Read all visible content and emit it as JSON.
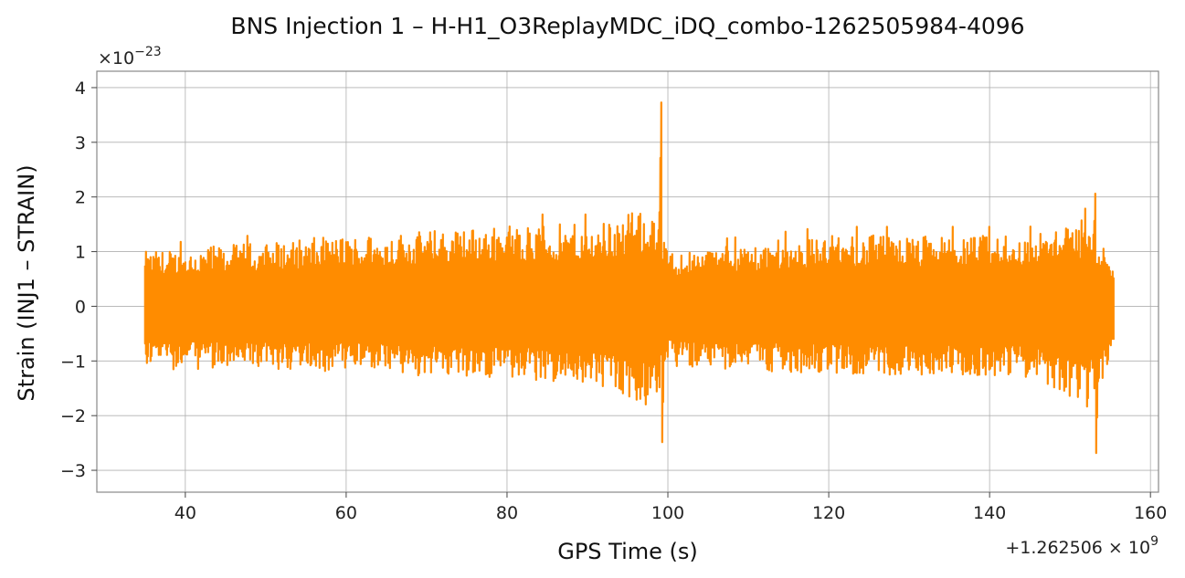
{
  "chart_data": {
    "type": "line",
    "title": "BNS Injection 1 – H-H1_O3ReplayMDC_iDQ_combo-1262505984-4096",
    "xlabel": "GPS Time (s)",
    "ylabel": "Strain (INJ1 – STRAIN)",
    "x_offset_label": "+1.262506 × 10",
    "x_offset_exp": "9",
    "y_scale_label": "×10",
    "y_scale_exp": "−23",
    "xlim": [
      29,
      161
    ],
    "ylim": [
      -3.4,
      4.3
    ],
    "x_ticks": [
      40,
      60,
      80,
      100,
      120,
      140,
      160
    ],
    "x_tick_labels": [
      "40",
      "60",
      "80",
      "100",
      "120",
      "140",
      "160"
    ],
    "y_ticks": [
      -3,
      -2,
      -1,
      0,
      1,
      2,
      3,
      4
    ],
    "y_tick_labels": [
      "−3",
      "−2",
      "−1",
      "0",
      "1",
      "2",
      "3",
      "4"
    ],
    "grid": true,
    "line_color": "#ff8c00",
    "series": [
      {
        "x_start": 35.0,
        "x_end": 155.4,
        "noise_amplitude": 0.85,
        "features": [
          {
            "type": "chirp_peak",
            "x": 99.2,
            "max": 3.95,
            "min": -3.05
          },
          {
            "type": "chirp_peak",
            "x": 153.2,
            "max": 2.38,
            "min": -2.92
          }
        ],
        "envelope": [
          {
            "x": 35,
            "max": 1.0,
            "min": -1.15
          },
          {
            "x": 60,
            "max": 1.3,
            "min": -1.2
          },
          {
            "x": 80,
            "max": 1.5,
            "min": -1.35
          },
          {
            "x": 90,
            "max": 1.5,
            "min": -1.4
          },
          {
            "x": 98,
            "max": 1.8,
            "min": -1.9
          },
          {
            "x": 100,
            "max": 1.0,
            "min": -1.1
          },
          {
            "x": 120,
            "max": 1.3,
            "min": -1.25
          },
          {
            "x": 145,
            "max": 1.3,
            "min": -1.3
          },
          {
            "x": 152,
            "max": 1.6,
            "min": -1.9
          },
          {
            "x": 155.4,
            "max": 0.9,
            "min": -1.0
          }
        ]
      }
    ]
  }
}
